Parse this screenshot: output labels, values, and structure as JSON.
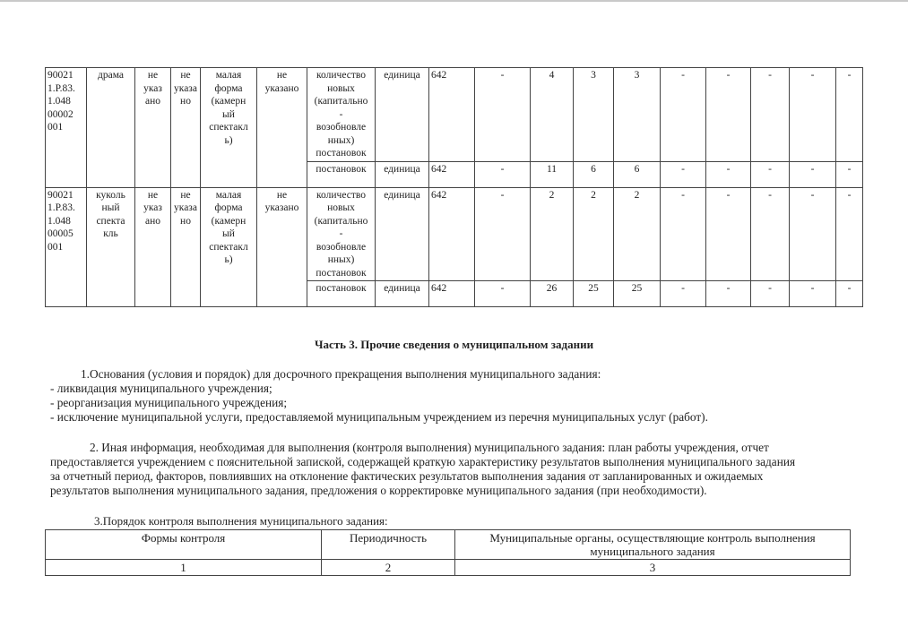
{
  "services_table": {
    "rows": [
      {
        "code": "900211.Р.83.1.04800002001",
        "code_lines": [
          "90021",
          "1.Р.83",
          ".1.048",
          "00002",
          "001"
        ],
        "content": "драма",
        "c3": "не указано",
        "c3_lines": [
          "не",
          "указ",
          "ано"
        ],
        "c4": "не указано",
        "c4_lines": [
          "не",
          "указа",
          "но"
        ],
        "form": "малая форма (камерный спектакль)",
        "form_lines": [
          "малая",
          "форма",
          "(камерн",
          "ый",
          "спектакл",
          "ь)"
        ],
        "c6": "не указано",
        "c6_lines": [
          "не",
          "указано"
        ],
        "indicators": [
          {
            "name_lines": [
              "количество",
              "новых",
              "(капитально",
              "-",
              "возобновле",
              "нных)",
              "постановок"
            ],
            "unit": "единица",
            "okei": "642",
            "values": [
              "-",
              "4",
              "3",
              "3",
              "-",
              "-",
              "-",
              "-",
              "-"
            ]
          },
          {
            "name_lines": [
              "постановок"
            ],
            "unit": "единица",
            "okei": "642",
            "values": [
              "-",
              "11",
              "6",
              "6",
              "-",
              "-",
              "-",
              "-",
              "-"
            ]
          }
        ]
      },
      {
        "code": "900211.Р.83.1.04800005001",
        "code_lines": [
          "90021",
          "1.Р.83",
          ".1.048",
          "00005",
          "001"
        ],
        "content": "кукольный спектакль",
        "content_lines": [
          "куколь",
          "ный",
          "спекта",
          "кль"
        ],
        "c3": "не указано",
        "c3_lines": [
          "не",
          "указ",
          "ано"
        ],
        "c4": "не указано",
        "c4_lines": [
          "не",
          "указа",
          "но"
        ],
        "form": "малая форма (камерный спектакль)",
        "form_lines": [
          "малая",
          "форма",
          "(камерн",
          "ый",
          "спектакл",
          "ь)"
        ],
        "c6": "не указано",
        "c6_lines": [
          "не",
          "указано"
        ],
        "indicators": [
          {
            "name_lines": [
              "количество",
              "новых",
              "(капитально",
              "-",
              "возобновле",
              "нных)",
              "постановок"
            ],
            "unit": "единица",
            "okei": "642",
            "values": [
              "-",
              "2",
              "2",
              "2",
              "-",
              "-",
              "-",
              "-",
              "-"
            ]
          },
          {
            "name_lines": [
              "постановок"
            ],
            "unit": "единица",
            "okei": "642",
            "values": [
              "-",
              "26",
              "25",
              "25",
              "-",
              "-",
              "-",
              "-",
              "-"
            ]
          }
        ]
      }
    ]
  },
  "part3": {
    "heading": "Часть 3. Прочие сведения о муниципальном задании",
    "item1": "1.Основания (условия и порядок) для досрочного прекращения выполнения муниципального задания:",
    "bullets": [
      "- ликвидация муниципального учреждения;",
      "- реорганизация муниципального учреждения;",
      "- исключение муниципальной услуги, предоставляемой муниципальным учреждением из перечня муниципальных услуг (работ)."
    ],
    "item2_lines": [
      "2. Иная информация, необходимая для выполнения (контроля выполнения) муниципального задания: план работы учреждения, отчет",
      "предоставляется учреждением с пояснительной запиской, содержащей краткую характеристику результатов выполнения муниципального задания",
      "за отчетный период, факторов, повлиявших на отклонение фактических результатов выполнения задания от запланированных и ожидаемых",
      "результатов выполнения муниципального задания, предложения о корректировке муниципального задания (при необходимости)."
    ],
    "item3": "3.Порядок контроля выполнения муниципального задания:",
    "control_table": {
      "headers": [
        "Формы контроля",
        "Периодичность",
        "Муниципальные органы, осуществляющие контроль выполнения муниципального задания"
      ],
      "numbers": [
        "1",
        "2",
        "3"
      ]
    }
  }
}
